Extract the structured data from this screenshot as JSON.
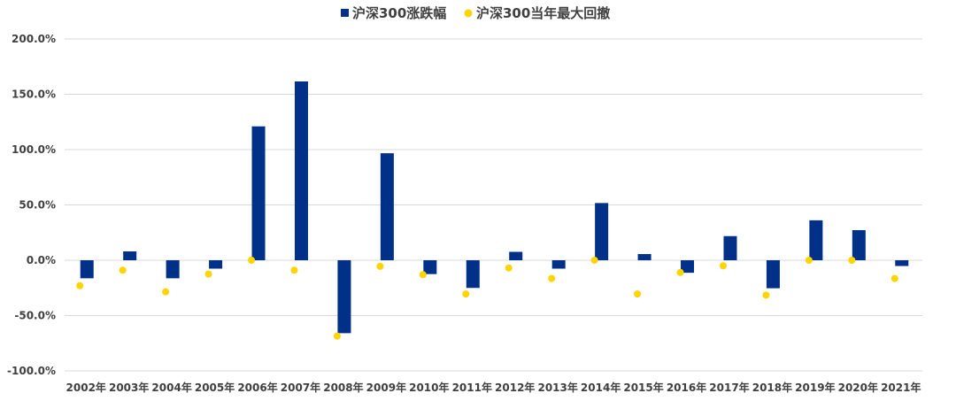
{
  "chart_data": {
    "type": "bar",
    "title": "",
    "xlabel": "",
    "ylabel": "",
    "categories": [
      "2002年",
      "2003年",
      "2004年",
      "2005年",
      "2006年",
      "2007年",
      "2008年",
      "2009年",
      "2010年",
      "2011年",
      "2012年",
      "2013年",
      "2014年",
      "2015年",
      "2016年",
      "2017年",
      "2018年",
      "2019年",
      "2020年",
      "2021年"
    ],
    "series": [
      {
        "name": "沪深300涨跌幅",
        "kind": "bar",
        "color": "#003087",
        "values": [
          -16.3,
          8.0,
          -16.3,
          -7.6,
          121.0,
          161.6,
          -65.9,
          96.7,
          -12.5,
          -25.0,
          7.6,
          -7.6,
          51.7,
          5.6,
          -11.3,
          21.8,
          -25.3,
          36.1,
          27.2,
          -5.2
        ]
      },
      {
        "name": "沪深300当年最大回撤",
        "kind": "scatter",
        "color": "#FFD400",
        "values": [
          -23.0,
          -9.0,
          -28.5,
          -12.5,
          0.0,
          -9.0,
          -68.5,
          -5.5,
          -13.0,
          -30.5,
          -7.0,
          -16.5,
          0.0,
          -30.5,
          -11.0,
          -5.0,
          -31.5,
          0.0,
          0.0,
          -16.5
        ]
      }
    ],
    "ylim": [
      -100,
      200
    ],
    "yticks": [
      "-100.0%",
      "-50.0%",
      "0.0%",
      "50.0%",
      "100.0%",
      "150.0%",
      "200.0%"
    ],
    "grid": true,
    "legend_position": "top-center"
  }
}
